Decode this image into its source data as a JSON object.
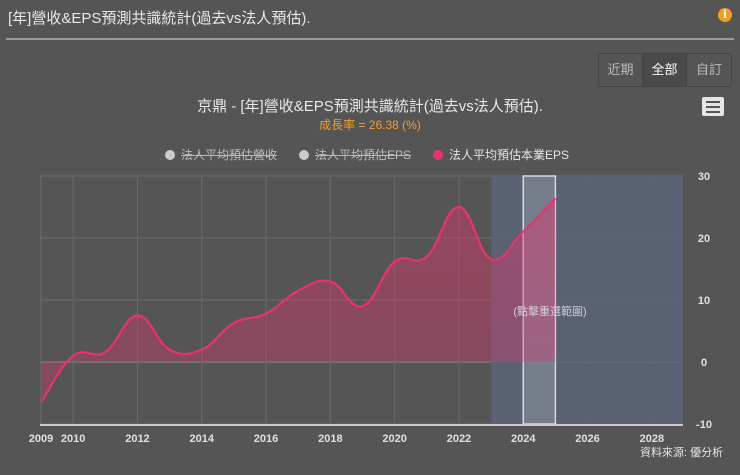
{
  "header": {
    "title": "[年]營收&EPS預測共識統計(過去vs法人預估).",
    "info_icon": "i"
  },
  "range_selector": {
    "buttons": [
      {
        "label": "近期",
        "active": false
      },
      {
        "label": "全部",
        "active": true
      },
      {
        "label": "自訂",
        "active": false
      }
    ]
  },
  "chart_title": "京鼎 - [年]營收&EPS預測共識統計(過去vs法人預估).",
  "chart_subtitle": "成長率 = 26.38 (%)",
  "legend": [
    {
      "label": "法人平均預估營收",
      "color": "#cccccc",
      "visible": false
    },
    {
      "label": "法人平均預估EPS",
      "color": "#cccccc",
      "visible": false
    },
    {
      "label": "法人平均預估本業EPS",
      "color": "#e8336d",
      "visible": true
    }
  ],
  "zoom_reset_label": "(點擊重選範圍)",
  "credits": "資料來源: 優分析",
  "colors": {
    "series": "#e8336d",
    "background": "#555555",
    "navigator_band": "#5a6478",
    "selected_band": "#7a808c"
  },
  "chart_data": {
    "type": "area",
    "title": "京鼎 - [年]營收&EPS預測共識統計(過去vs法人預估).",
    "subtitle": "成長率 = 26.38 (%)",
    "xlabel": "",
    "ylabel": "",
    "x": [
      2009,
      2010,
      2011,
      2012,
      2013,
      2014,
      2015,
      2016,
      2017,
      2018,
      2019,
      2020,
      2021,
      2022,
      2023,
      2024,
      2025
    ],
    "series": [
      {
        "name": "法人平均預估本業EPS",
        "values": [
          -6.5,
          1.0,
          1.6,
          7.5,
          2.0,
          2.0,
          6.3,
          7.8,
          11.5,
          13.0,
          9.0,
          16.2,
          17.0,
          25.0,
          16.6,
          21.0,
          26.4
        ]
      }
    ],
    "hidden_series": [
      "法人平均預估營收",
      "法人平均預估EPS"
    ],
    "x_ticks": [
      "2009",
      "2010",
      "2012",
      "2014",
      "2016",
      "2018",
      "2020",
      "2022",
      "2024",
      "2026",
      "2028"
    ],
    "y_ticks": [
      "-10",
      "0",
      "10",
      "20",
      "30"
    ],
    "ylim": [
      -10,
      30
    ],
    "xlim": [
      2009,
      2029
    ],
    "y_axis_position": "right",
    "grid": true,
    "legend_position": "top",
    "highlighted_range": [
      2023,
      2029
    ],
    "selected_range": [
      2024,
      2025
    ]
  }
}
